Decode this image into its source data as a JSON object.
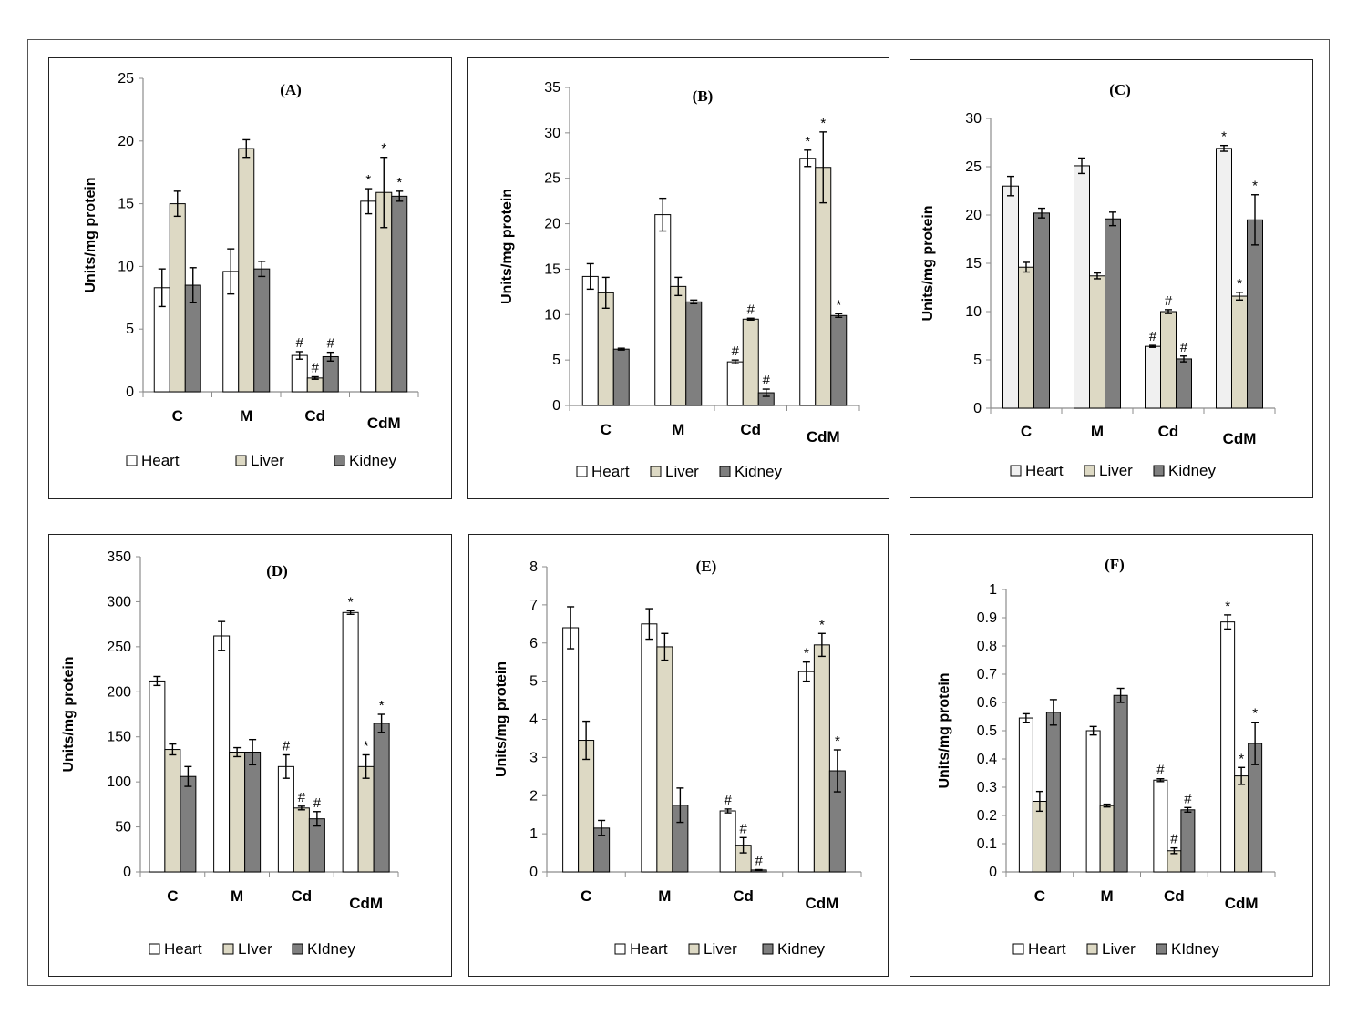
{
  "colors": {
    "heart": "#ffffff",
    "heart_c": "#f0f0f0",
    "liver": "#ddd9c4",
    "kidney": "#7f7f7f"
  },
  "chart_data": [
    {
      "type": "bar",
      "title": "(A)",
      "ylabel": "Units/mg protein",
      "ylim": [
        0,
        25
      ],
      "yticks": [
        "0",
        "5",
        "10",
        "15",
        "20",
        "25"
      ],
      "categories": [
        "C",
        "M",
        "Cd",
        "CdM"
      ],
      "legend": [
        "Heart",
        "Liver",
        "Kidney"
      ],
      "series": [
        {
          "name": "Heart",
          "values": [
            8.3,
            9.6,
            2.9,
            15.2
          ],
          "errors": [
            1.5,
            1.8,
            0.3,
            1.0
          ],
          "marks": [
            "",
            "",
            "#",
            "*"
          ]
        },
        {
          "name": "Liver",
          "values": [
            15.0,
            19.4,
            1.1,
            15.9
          ],
          "errors": [
            1.0,
            0.7,
            0.1,
            2.8
          ],
          "marks": [
            "",
            "",
            "#",
            "*"
          ]
        },
        {
          "name": "Kidney",
          "values": [
            8.5,
            9.8,
            2.8,
            15.6
          ],
          "errors": [
            1.4,
            0.6,
            0.35,
            0.4
          ],
          "marks": [
            "",
            "",
            "#",
            "*"
          ]
        }
      ]
    },
    {
      "type": "bar",
      "title": "(B)",
      "ylabel": "Units/mg protein",
      "ylim": [
        0,
        35
      ],
      "yticks": [
        "0",
        "5",
        "10",
        "15",
        "20",
        "25",
        "30",
        "35"
      ],
      "categories": [
        "C",
        "M",
        "Cd",
        "CdM"
      ],
      "legend": [
        "Heart",
        "Liver",
        "Kidney"
      ],
      "series": [
        {
          "name": "Heart",
          "values": [
            14.2,
            21.0,
            4.8,
            27.2
          ],
          "errors": [
            1.4,
            1.8,
            0.2,
            0.9
          ],
          "marks": [
            "",
            "",
            "#",
            "*"
          ]
        },
        {
          "name": "Liver",
          "values": [
            12.4,
            13.1,
            9.5,
            26.2
          ],
          "errors": [
            1.7,
            1.0,
            0.1,
            3.9
          ],
          "marks": [
            "",
            "",
            "#",
            "*"
          ]
        },
        {
          "name": "Kidney",
          "values": [
            6.2,
            11.4,
            1.4,
            9.9
          ],
          "errors": [
            0.1,
            0.2,
            0.4,
            0.2
          ],
          "marks": [
            "",
            "",
            "#",
            "*"
          ]
        }
      ]
    },
    {
      "type": "bar",
      "title": "(C)",
      "ylabel": "Units/mg protein",
      "ylim": [
        0,
        30
      ],
      "yticks": [
        "0",
        "5",
        "10",
        "15",
        "20",
        "25",
        "30"
      ],
      "categories": [
        "C",
        "M",
        "Cd",
        "CdM"
      ],
      "legend": [
        "Heart",
        "Liver",
        "Kidney"
      ],
      "series": [
        {
          "name": "Heart",
          "values": [
            23.0,
            25.1,
            6.4,
            26.9
          ],
          "errors": [
            1.0,
            0.8,
            0.1,
            0.3
          ],
          "marks": [
            "",
            "",
            "#",
            "*"
          ]
        },
        {
          "name": "Liver",
          "values": [
            14.6,
            13.7,
            10.0,
            11.6
          ],
          "errors": [
            0.5,
            0.3,
            0.2,
            0.4
          ],
          "marks": [
            "",
            "",
            "#",
            "*"
          ]
        },
        {
          "name": "Kidney",
          "values": [
            20.2,
            19.6,
            5.1,
            19.5
          ],
          "errors": [
            0.5,
            0.7,
            0.3,
            2.6
          ],
          "marks": [
            "",
            "",
            "#",
            "*"
          ]
        }
      ]
    },
    {
      "type": "bar",
      "title": "(D)",
      "ylabel": "Units/mg protein",
      "ylim": [
        0,
        350
      ],
      "yticks": [
        "0",
        "50",
        "100",
        "150",
        "200",
        "250",
        "300",
        "350"
      ],
      "categories": [
        "C",
        "M",
        "Cd",
        "CdM"
      ],
      "legend": [
        "Heart",
        "LIver",
        "KIdney"
      ],
      "series": [
        {
          "name": "Heart",
          "values": [
            212,
            262,
            117,
            288
          ],
          "errors": [
            5,
            16,
            13,
            2
          ],
          "marks": [
            "",
            "",
            "#",
            "*"
          ]
        },
        {
          "name": "Liver",
          "values": [
            136,
            133,
            71,
            117
          ],
          "errors": [
            6,
            5,
            2,
            13
          ],
          "marks": [
            "",
            "",
            "#",
            "*"
          ]
        },
        {
          "name": "Kidney",
          "values": [
            106,
            133,
            59,
            165
          ],
          "errors": [
            11,
            14,
            8,
            10
          ],
          "marks": [
            "",
            "",
            "#",
            "*"
          ]
        }
      ]
    },
    {
      "type": "bar",
      "title": "(E)",
      "ylabel": "Units/mg protein",
      "ylim": [
        0,
        8
      ],
      "yticks": [
        "0",
        "1",
        "2",
        "3",
        "4",
        "5",
        "6",
        "7",
        "8"
      ],
      "categories": [
        "C",
        "M",
        "Cd",
        "CdM"
      ],
      "legend": [
        "Heart",
        "Liver",
        "Kidney"
      ],
      "series": [
        {
          "name": "Heart",
          "values": [
            6.4,
            6.5,
            1.6,
            5.25
          ],
          "errors": [
            0.55,
            0.4,
            0.05,
            0.25
          ],
          "marks": [
            "",
            "",
            "#",
            "*"
          ]
        },
        {
          "name": "Liver",
          "values": [
            3.45,
            5.9,
            0.7,
            5.95
          ],
          "errors": [
            0.5,
            0.35,
            0.2,
            0.3
          ],
          "marks": [
            "",
            "",
            "#",
            "*"
          ]
        },
        {
          "name": "Kidney",
          "values": [
            1.15,
            1.75,
            0.05,
            2.65
          ],
          "errors": [
            0.2,
            0.45,
            0.01,
            0.55
          ],
          "marks": [
            "",
            "",
            "#",
            "*"
          ]
        }
      ]
    },
    {
      "type": "bar",
      "title": "(F)",
      "ylabel": "Units/mg protein",
      "ylim": [
        0,
        1
      ],
      "yticks": [
        "0",
        "0.1",
        "0.2",
        "0.3",
        "0.4",
        "0.5",
        "0.6",
        "0.7",
        "0.8",
        "0.9",
        "1"
      ],
      "categories": [
        "C",
        "M",
        "Cd",
        "CdM"
      ],
      "legend": [
        "Heart",
        "Liver",
        "KIdney"
      ],
      "series": [
        {
          "name": "Heart",
          "values": [
            0.545,
            0.5,
            0.325,
            0.885
          ],
          "errors": [
            0.015,
            0.015,
            0.005,
            0.025
          ],
          "marks": [
            "",
            "",
            "#",
            "*"
          ]
        },
        {
          "name": "Liver",
          "values": [
            0.25,
            0.235,
            0.075,
            0.34
          ],
          "errors": [
            0.035,
            0.005,
            0.01,
            0.03
          ],
          "marks": [
            "",
            "",
            "#",
            "*"
          ]
        },
        {
          "name": "Kidney",
          "values": [
            0.565,
            0.625,
            0.22,
            0.455
          ],
          "errors": [
            0.045,
            0.025,
            0.008,
            0.075
          ],
          "marks": [
            "",
            "",
            "#",
            "*"
          ]
        }
      ]
    }
  ]
}
